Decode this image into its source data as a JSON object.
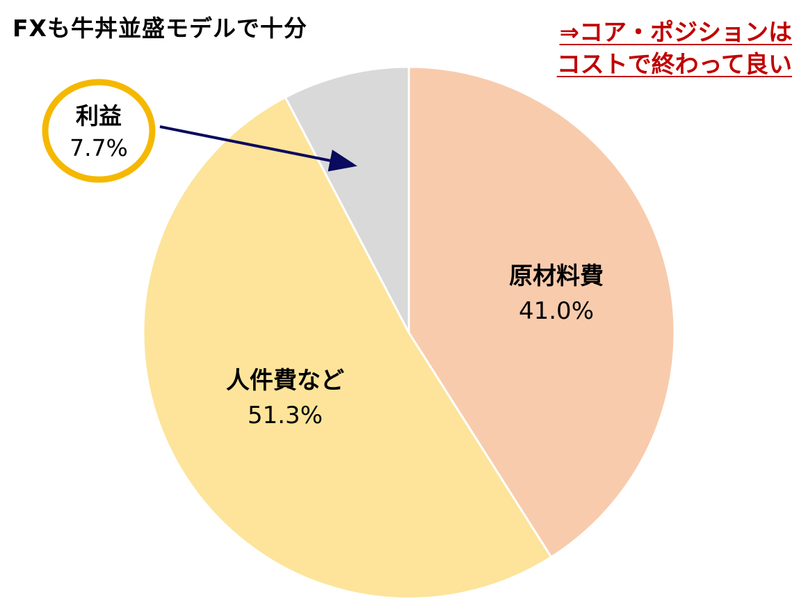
{
  "header": {
    "title": "FXも牛丼並盛モデルで十分"
  },
  "conclusion": {
    "line1": "⇒コア・ポジションは",
    "line2": "コストで終わって良い",
    "color": "#c00000"
  },
  "chart_data": {
    "type": "pie",
    "title": "",
    "start_angle_deg": 90,
    "direction": "clockwise",
    "slices": [
      {
        "label": "原材料費",
        "value": 41.0,
        "display": "41.0%",
        "color": "#f8cbad"
      },
      {
        "label": "人件費など",
        "value": 51.3,
        "display": "51.3%",
        "color": "#fde49a"
      },
      {
        "label": "利益",
        "value": 7.7,
        "display": "7.7%",
        "color": "#d9d9d9"
      }
    ],
    "callout": {
      "slice": "利益",
      "ring_color": "#f5b800",
      "arrow_color": "#0a0a5e"
    }
  }
}
